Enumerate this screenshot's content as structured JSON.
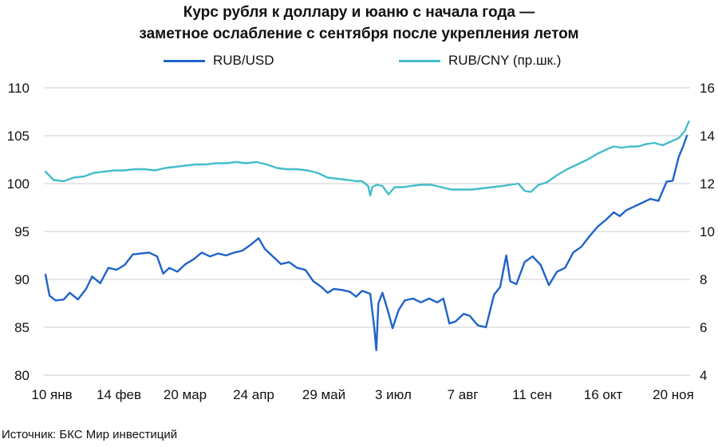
{
  "title_line1": "Курс рубля к доллару и юаню с начала года —",
  "title_line2": "заметное ослабление с сентября после укрепления летом",
  "source": "Источник: БКС Мир инвестиций",
  "colors": {
    "usd": "#1f63c9",
    "cny": "#45bccb",
    "grid": "#cccccc",
    "text": "#111111"
  },
  "chart_data": {
    "type": "line",
    "title": "Курс рубля к доллару и юаню с начала года — заметное ослабление с сентября после укрепления летом",
    "legend_position": "top",
    "grid": "horizontal",
    "x_categories": [
      "10 янв",
      "14 фев",
      "20 мар",
      "24 апр",
      "29 май",
      "3 июл",
      "7 авг",
      "11 сен",
      "16 окт",
      "20 ноя"
    ],
    "y_left": {
      "ticks": [
        "80",
        "85",
        "90",
        "95",
        "100",
        "105",
        "110"
      ],
      "range": [
        80,
        110
      ]
    },
    "y_right": {
      "ticks": [
        "4",
        "6",
        "8",
        "10",
        "12",
        "14",
        "16"
      ],
      "range": [
        4,
        16
      ],
      "label_suffix": "(пр.шк.)"
    },
    "series": [
      {
        "name": "RUB/USD",
        "axis": "left",
        "color": "#1f63c9",
        "points": [
          [
            "2022-01-10",
            90.5
          ],
          [
            "2022-01-12",
            88.3
          ],
          [
            "2022-01-15",
            87.8
          ],
          [
            "2022-01-19",
            87.9
          ],
          [
            "2022-01-22",
            88.6
          ],
          [
            "2022-01-26",
            87.9
          ],
          [
            "2022-01-30",
            89.0
          ],
          [
            "2022-02-02",
            90.3
          ],
          [
            "2022-02-06",
            89.6
          ],
          [
            "2022-02-10",
            91.2
          ],
          [
            "2022-02-14",
            91.0
          ],
          [
            "2022-02-18",
            91.5
          ],
          [
            "2022-02-22",
            92.6
          ],
          [
            "2022-02-26",
            92.7
          ],
          [
            "2022-03-02",
            92.8
          ],
          [
            "2022-03-06",
            92.4
          ],
          [
            "2022-03-09",
            90.6
          ],
          [
            "2022-03-12",
            91.2
          ],
          [
            "2022-03-16",
            90.8
          ],
          [
            "2022-03-20",
            91.6
          ],
          [
            "2022-03-24",
            92.1
          ],
          [
            "2022-03-28",
            92.8
          ],
          [
            "2022-04-01",
            92.4
          ],
          [
            "2022-04-05",
            92.7
          ],
          [
            "2022-04-09",
            92.5
          ],
          [
            "2022-04-13",
            92.8
          ],
          [
            "2022-04-17",
            93.0
          ],
          [
            "2022-04-21",
            93.6
          ],
          [
            "2022-04-25",
            94.3
          ],
          [
            "2022-04-28",
            93.2
          ],
          [
            "2022-05-02",
            92.4
          ],
          [
            "2022-05-06",
            91.6
          ],
          [
            "2022-05-10",
            91.8
          ],
          [
            "2022-05-14",
            91.2
          ],
          [
            "2022-05-18",
            91.0
          ],
          [
            "2022-05-22",
            89.8
          ],
          [
            "2022-05-26",
            89.2
          ],
          [
            "2022-05-29",
            88.6
          ],
          [
            "2022-06-01",
            89.0
          ],
          [
            "2022-06-05",
            88.9
          ],
          [
            "2022-06-09",
            88.7
          ],
          [
            "2022-06-12",
            88.2
          ],
          [
            "2022-06-15",
            88.8
          ],
          [
            "2022-06-19",
            88.5
          ],
          [
            "2022-06-21",
            84.9
          ],
          [
            "2022-06-22",
            82.6
          ],
          [
            "2022-06-23",
            87.5
          ],
          [
            "2022-06-25",
            88.6
          ],
          [
            "2022-06-28",
            86.5
          ],
          [
            "2022-06-30",
            84.9
          ],
          [
            "2022-07-03",
            86.8
          ],
          [
            "2022-07-06",
            87.8
          ],
          [
            "2022-07-10",
            88.0
          ],
          [
            "2022-07-14",
            87.6
          ],
          [
            "2022-07-18",
            88.0
          ],
          [
            "2022-07-22",
            87.6
          ],
          [
            "2022-07-25",
            88.0
          ],
          [
            "2022-07-28",
            85.4
          ],
          [
            "2022-07-31",
            85.6
          ],
          [
            "2022-08-04",
            86.4
          ],
          [
            "2022-08-07",
            86.2
          ],
          [
            "2022-08-11",
            85.2
          ],
          [
            "2022-08-15",
            85.0
          ],
          [
            "2022-08-19",
            88.4
          ],
          [
            "2022-08-22",
            89.2
          ],
          [
            "2022-08-25",
            92.5
          ],
          [
            "2022-08-27",
            89.8
          ],
          [
            "2022-08-30",
            89.5
          ],
          [
            "2022-09-03",
            91.8
          ],
          [
            "2022-09-07",
            92.4
          ],
          [
            "2022-09-11",
            91.5
          ],
          [
            "2022-09-15",
            89.4
          ],
          [
            "2022-09-19",
            90.8
          ],
          [
            "2022-09-23",
            91.2
          ],
          [
            "2022-09-27",
            92.8
          ],
          [
            "2022-10-01",
            93.4
          ],
          [
            "2022-10-05",
            94.5
          ],
          [
            "2022-10-09",
            95.5
          ],
          [
            "2022-10-13",
            96.2
          ],
          [
            "2022-10-17",
            97.0
          ],
          [
            "2022-10-20",
            96.6
          ],
          [
            "2022-10-23",
            97.2
          ],
          [
            "2022-10-27",
            97.6
          ],
          [
            "2022-10-31",
            98.0
          ],
          [
            "2022-11-04",
            98.4
          ],
          [
            "2022-11-08",
            98.2
          ],
          [
            "2022-11-12",
            100.2
          ],
          [
            "2022-11-15",
            100.3
          ],
          [
            "2022-11-18",
            102.8
          ],
          [
            "2022-11-20",
            103.8
          ],
          [
            "2022-11-22",
            105.0
          ]
        ]
      },
      {
        "name": "RUB/CNY (пр.шк.)",
        "axis": "right",
        "color": "#45bccb",
        "points": [
          [
            "2022-01-10",
            12.5
          ],
          [
            "2022-01-14",
            12.15
          ],
          [
            "2022-01-19",
            12.1
          ],
          [
            "2022-01-24",
            12.25
          ],
          [
            "2022-01-29",
            12.3
          ],
          [
            "2022-02-03",
            12.45
          ],
          [
            "2022-02-08",
            12.5
          ],
          [
            "2022-02-13",
            12.55
          ],
          [
            "2022-02-18",
            12.55
          ],
          [
            "2022-02-23",
            12.6
          ],
          [
            "2022-02-28",
            12.6
          ],
          [
            "2022-03-05",
            12.55
          ],
          [
            "2022-03-10",
            12.65
          ],
          [
            "2022-03-15",
            12.7
          ],
          [
            "2022-03-20",
            12.75
          ],
          [
            "2022-03-25",
            12.8
          ],
          [
            "2022-03-30",
            12.8
          ],
          [
            "2022-04-04",
            12.85
          ],
          [
            "2022-04-09",
            12.85
          ],
          [
            "2022-04-14",
            12.9
          ],
          [
            "2022-04-19",
            12.85
          ],
          [
            "2022-04-24",
            12.9
          ],
          [
            "2022-04-29",
            12.8
          ],
          [
            "2022-05-04",
            12.65
          ],
          [
            "2022-05-09",
            12.6
          ],
          [
            "2022-05-14",
            12.6
          ],
          [
            "2022-05-19",
            12.55
          ],
          [
            "2022-05-24",
            12.45
          ],
          [
            "2022-05-29",
            12.25
          ],
          [
            "2022-06-03",
            12.2
          ],
          [
            "2022-06-08",
            12.15
          ],
          [
            "2022-06-12",
            12.1
          ],
          [
            "2022-06-15",
            12.1
          ],
          [
            "2022-06-18",
            11.9
          ],
          [
            "2022-06-19",
            11.5
          ],
          [
            "2022-06-20",
            11.85
          ],
          [
            "2022-06-22",
            11.95
          ],
          [
            "2022-06-25",
            11.9
          ],
          [
            "2022-06-28",
            11.55
          ],
          [
            "2022-07-01",
            11.85
          ],
          [
            "2022-07-05",
            11.85
          ],
          [
            "2022-07-09",
            11.9
          ],
          [
            "2022-07-14",
            11.95
          ],
          [
            "2022-07-19",
            11.95
          ],
          [
            "2022-07-24",
            11.85
          ],
          [
            "2022-07-29",
            11.75
          ],
          [
            "2022-08-03",
            11.75
          ],
          [
            "2022-08-08",
            11.75
          ],
          [
            "2022-08-13",
            11.8
          ],
          [
            "2022-08-18",
            11.85
          ],
          [
            "2022-08-23",
            11.9
          ],
          [
            "2022-08-27",
            11.95
          ],
          [
            "2022-08-31",
            12.0
          ],
          [
            "2022-09-03",
            11.7
          ],
          [
            "2022-09-06",
            11.65
          ],
          [
            "2022-09-10",
            11.95
          ],
          [
            "2022-09-14",
            12.05
          ],
          [
            "2022-09-19",
            12.35
          ],
          [
            "2022-09-24",
            12.6
          ],
          [
            "2022-09-29",
            12.8
          ],
          [
            "2022-10-04",
            13.0
          ],
          [
            "2022-10-09",
            13.25
          ],
          [
            "2022-10-14",
            13.45
          ],
          [
            "2022-10-17",
            13.55
          ],
          [
            "2022-10-21",
            13.5
          ],
          [
            "2022-10-25",
            13.55
          ],
          [
            "2022-10-29",
            13.55
          ],
          [
            "2022-11-02",
            13.65
          ],
          [
            "2022-11-06",
            13.7
          ],
          [
            "2022-11-10",
            13.6
          ],
          [
            "2022-11-14",
            13.75
          ],
          [
            "2022-11-18",
            13.9
          ],
          [
            "2022-11-21",
            14.2
          ],
          [
            "2022-11-23",
            14.6
          ]
        ]
      }
    ]
  }
}
